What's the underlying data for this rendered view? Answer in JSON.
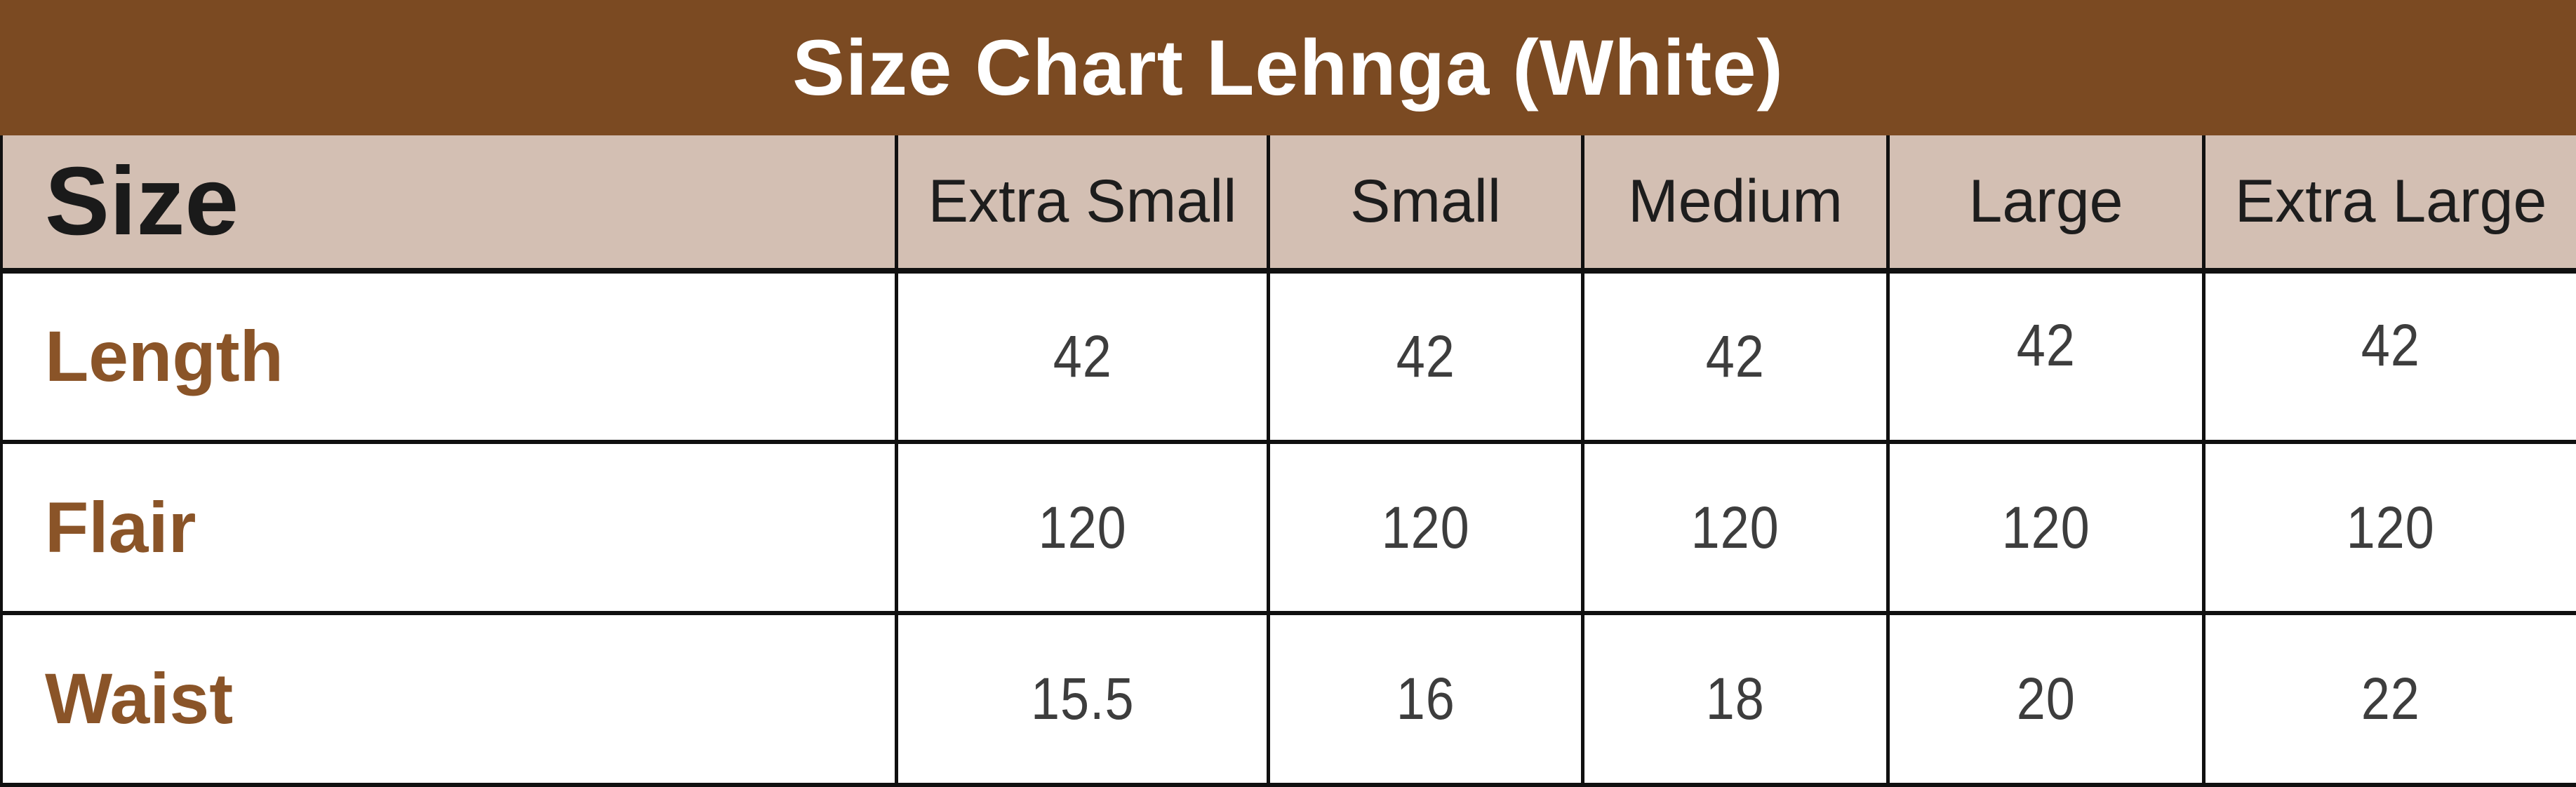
{
  "title": "Size Chart Lehnga (White)",
  "table": {
    "corner_label": "Size",
    "columns": [
      "Extra Small",
      "Small",
      "Medium",
      "Large",
      "Extra Large"
    ],
    "rows": [
      {
        "label": "Length",
        "values": [
          "42",
          "42",
          "42",
          "42",
          "42"
        ]
      },
      {
        "label": "Flair",
        "values": [
          "120",
          "120",
          "120",
          "120",
          "120"
        ]
      },
      {
        "label": "Waist",
        "values": [
          "15.5",
          "16",
          "18",
          "20",
          "22"
        ]
      }
    ]
  },
  "colors": {
    "title_bg": "#7B4A22",
    "title_text": "#FFFFFF",
    "header_bg": "#D3BFB3",
    "header_text": "#1D1D1D",
    "row_label_text": "#8A5428",
    "value_text": "#3D3D3D",
    "grid_border": "#101010",
    "cell_bg": "#FFFFFF"
  },
  "chart_data": {
    "type": "table",
    "title": "Size Chart Lehnga (White)",
    "row_header": "Size",
    "columns": [
      "Extra Small",
      "Small",
      "Medium",
      "Large",
      "Extra Large"
    ],
    "rows": [
      {
        "label": "Length",
        "values": [
          42,
          42,
          42,
          42,
          42
        ]
      },
      {
        "label": "Flair",
        "values": [
          120,
          120,
          120,
          120,
          120
        ]
      },
      {
        "label": "Waist",
        "values": [
          15.5,
          16,
          18,
          20,
          22
        ]
      }
    ],
    "layout": {
      "grid": true,
      "legend": false,
      "title_position": "top-banner"
    }
  }
}
